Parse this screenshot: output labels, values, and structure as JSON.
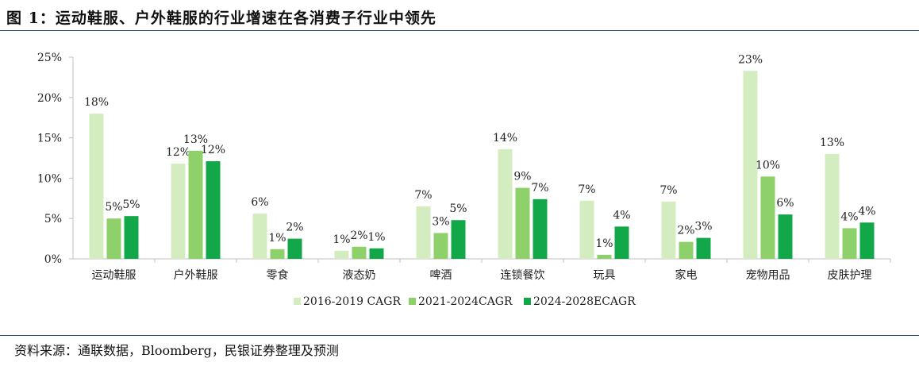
{
  "header": {
    "title": "图 1：运动鞋服、户外鞋服的行业增速在各消费子行业中领先"
  },
  "footer": {
    "source": "资料来源：通联数据，Bloomberg，民银证券整理及预测"
  },
  "colors": {
    "series1": "#d3edc1",
    "series2": "#8ed16b",
    "series3": "#12a84a",
    "axis": "#bfbfbf",
    "rule": "#1e4e79"
  },
  "chart_data": {
    "type": "bar",
    "categories": [
      "运动鞋服",
      "户外鞋服",
      "零食",
      "液态奶",
      "啤酒",
      "连锁餐饮",
      "玩具",
      "家电",
      "宠物用品",
      "皮肤护理"
    ],
    "series": [
      {
        "name": "2016-2019 CAGR",
        "values": [
          18,
          11.8,
          5.6,
          1.0,
          6.5,
          13.6,
          7.2,
          7.1,
          23.3,
          13.0
        ],
        "labels": [
          "18%",
          "12%",
          "6%",
          "1%",
          "7%",
          "14%",
          "7%",
          "7%",
          "23%",
          "13%"
        ]
      },
      {
        "name": "2021-2024CAGR",
        "values": [
          5.0,
          13.4,
          1.2,
          1.5,
          3.2,
          8.8,
          0.5,
          2.1,
          10.2,
          3.8
        ],
        "labels": [
          "5%",
          "13%",
          "1%",
          "2%",
          "3%",
          "9%",
          "1%",
          "2%",
          "10%",
          "4%"
        ]
      },
      {
        "name": "2024-2028ECAGR",
        "values": [
          5.3,
          12.1,
          2.5,
          1.3,
          4.8,
          7.4,
          4.0,
          2.6,
          5.5,
          4.5
        ],
        "labels": [
          "5%",
          "12%",
          "2%",
          "1%",
          "5%",
          "7%",
          "4%",
          "3%",
          "6%",
          "4%"
        ]
      }
    ],
    "yticks": [
      "0%",
      "5%",
      "10%",
      "15%",
      "20%",
      "25%"
    ],
    "ylim": [
      0,
      25
    ],
    "grid": false,
    "legend": "bottom"
  }
}
